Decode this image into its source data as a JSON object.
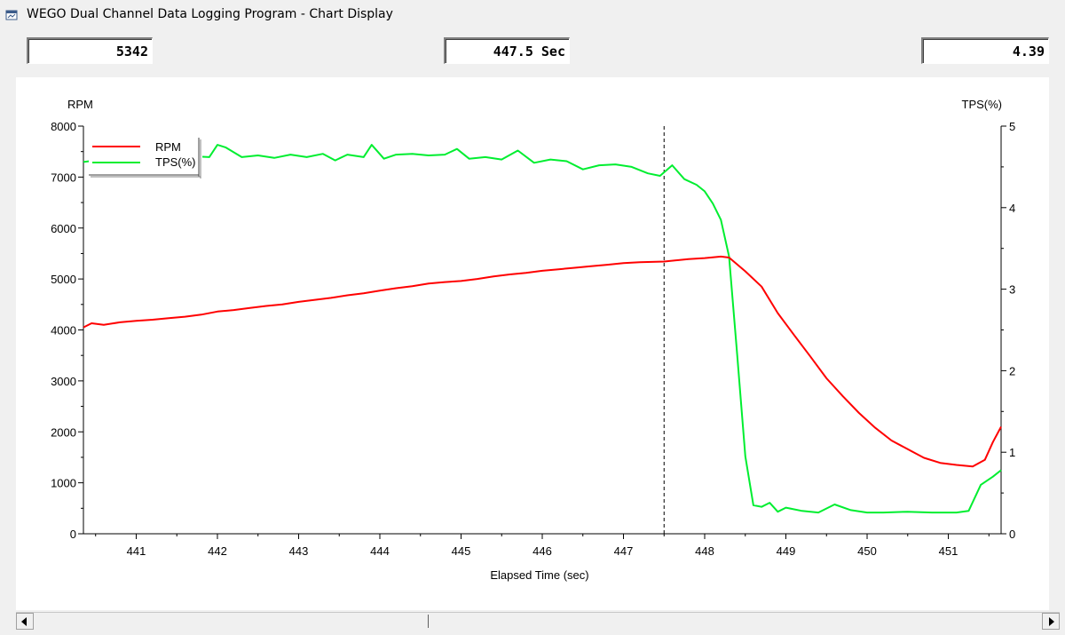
{
  "window": {
    "title": "WEGO Dual Channel Data Logging Program - Chart Display"
  },
  "readouts": {
    "rpm": "5342",
    "time": "447.5 Sec",
    "tps": "4.39"
  },
  "chart_data": {
    "type": "line",
    "xlabel": "Elapsed Time (sec)",
    "ylabel_left": "RPM",
    "ylabel_right": "TPS(%)",
    "xlim": [
      440.35,
      451.65
    ],
    "ylim_left": [
      0,
      8000
    ],
    "ylim_right": [
      0,
      5
    ],
    "x_ticks": [
      441,
      442,
      443,
      444,
      445,
      446,
      447,
      448,
      449,
      450,
      451
    ],
    "y_left_ticks": [
      0,
      1000,
      2000,
      3000,
      4000,
      5000,
      6000,
      7000,
      8000
    ],
    "y_right_ticks": [
      0,
      1,
      2,
      3,
      4,
      5
    ],
    "cursor_x": 447.5,
    "legend": {
      "position": "top-left",
      "entries": [
        "RPM",
        "TPS(%)"
      ]
    },
    "grid": false,
    "series": [
      {
        "name": "RPM",
        "axis": "left",
        "color": "#ff0000",
        "points": [
          [
            440.35,
            4050
          ],
          [
            440.45,
            4130
          ],
          [
            440.6,
            4100
          ],
          [
            440.8,
            4150
          ],
          [
            441.0,
            4180
          ],
          [
            441.2,
            4200
          ],
          [
            441.4,
            4230
          ],
          [
            441.6,
            4260
          ],
          [
            441.8,
            4300
          ],
          [
            442.0,
            4360
          ],
          [
            442.2,
            4390
          ],
          [
            442.4,
            4430
          ],
          [
            442.6,
            4470
          ],
          [
            442.8,
            4500
          ],
          [
            443.0,
            4550
          ],
          [
            443.2,
            4590
          ],
          [
            443.4,
            4630
          ],
          [
            443.6,
            4680
          ],
          [
            443.8,
            4720
          ],
          [
            444.0,
            4770
          ],
          [
            444.2,
            4820
          ],
          [
            444.4,
            4860
          ],
          [
            444.6,
            4910
          ],
          [
            444.8,
            4940
          ],
          [
            445.0,
            4960
          ],
          [
            445.2,
            5000
          ],
          [
            445.4,
            5050
          ],
          [
            445.6,
            5090
          ],
          [
            445.8,
            5120
          ],
          [
            446.0,
            5160
          ],
          [
            446.2,
            5190
          ],
          [
            446.4,
            5220
          ],
          [
            446.6,
            5250
          ],
          [
            446.8,
            5280
          ],
          [
            447.0,
            5310
          ],
          [
            447.2,
            5330
          ],
          [
            447.5,
            5342
          ],
          [
            447.8,
            5390
          ],
          [
            448.0,
            5410
          ],
          [
            448.2,
            5440
          ],
          [
            448.3,
            5420
          ],
          [
            448.5,
            5150
          ],
          [
            448.7,
            4850
          ],
          [
            448.9,
            4330
          ],
          [
            449.1,
            3900
          ],
          [
            449.3,
            3480
          ],
          [
            449.5,
            3050
          ],
          [
            449.7,
            2700
          ],
          [
            449.9,
            2370
          ],
          [
            450.1,
            2080
          ],
          [
            450.3,
            1830
          ],
          [
            450.5,
            1660
          ],
          [
            450.7,
            1490
          ],
          [
            450.9,
            1390
          ],
          [
            451.1,
            1350
          ],
          [
            451.3,
            1320
          ],
          [
            451.45,
            1450
          ],
          [
            451.55,
            1800
          ],
          [
            451.65,
            2100
          ]
        ]
      },
      {
        "name": "TPS(%)",
        "axis": "right",
        "color": "#00ee30",
        "points": [
          [
            440.35,
            4.56
          ],
          [
            440.5,
            4.58
          ],
          [
            440.7,
            4.54
          ],
          [
            440.9,
            4.62
          ],
          [
            441.1,
            4.59
          ],
          [
            441.3,
            4.62
          ],
          [
            441.5,
            4.6
          ],
          [
            441.7,
            4.63
          ],
          [
            441.9,
            4.62
          ],
          [
            442.0,
            4.77
          ],
          [
            442.1,
            4.74
          ],
          [
            442.3,
            4.62
          ],
          [
            442.5,
            4.64
          ],
          [
            442.7,
            4.61
          ],
          [
            442.9,
            4.65
          ],
          [
            443.1,
            4.62
          ],
          [
            443.3,
            4.66
          ],
          [
            443.45,
            4.58
          ],
          [
            443.6,
            4.65
          ],
          [
            443.8,
            4.62
          ],
          [
            443.9,
            4.77
          ],
          [
            444.05,
            4.6
          ],
          [
            444.2,
            4.65
          ],
          [
            444.4,
            4.66
          ],
          [
            444.6,
            4.64
          ],
          [
            444.8,
            4.65
          ],
          [
            444.95,
            4.72
          ],
          [
            445.1,
            4.6
          ],
          [
            445.3,
            4.62
          ],
          [
            445.5,
            4.59
          ],
          [
            445.7,
            4.7
          ],
          [
            445.9,
            4.55
          ],
          [
            446.1,
            4.59
          ],
          [
            446.3,
            4.57
          ],
          [
            446.5,
            4.47
          ],
          [
            446.7,
            4.52
          ],
          [
            446.9,
            4.53
          ],
          [
            447.1,
            4.5
          ],
          [
            447.3,
            4.42
          ],
          [
            447.45,
            4.39
          ],
          [
            447.6,
            4.52
          ],
          [
            447.75,
            4.35
          ],
          [
            447.9,
            4.28
          ],
          [
            448.0,
            4.2
          ],
          [
            448.1,
            4.05
          ],
          [
            448.2,
            3.85
          ],
          [
            448.3,
            3.4
          ],
          [
            448.4,
            2.2
          ],
          [
            448.5,
            0.95
          ],
          [
            448.6,
            0.35
          ],
          [
            448.7,
            0.33
          ],
          [
            448.8,
            0.38
          ],
          [
            448.9,
            0.27
          ],
          [
            449.0,
            0.32
          ],
          [
            449.2,
            0.28
          ],
          [
            449.4,
            0.26
          ],
          [
            449.6,
            0.36
          ],
          [
            449.8,
            0.29
          ],
          [
            450.0,
            0.26
          ],
          [
            450.2,
            0.26
          ],
          [
            450.5,
            0.27
          ],
          [
            450.8,
            0.26
          ],
          [
            451.1,
            0.26
          ],
          [
            451.25,
            0.28
          ],
          [
            451.4,
            0.6
          ],
          [
            451.55,
            0.7
          ],
          [
            451.65,
            0.78
          ]
        ]
      }
    ]
  }
}
